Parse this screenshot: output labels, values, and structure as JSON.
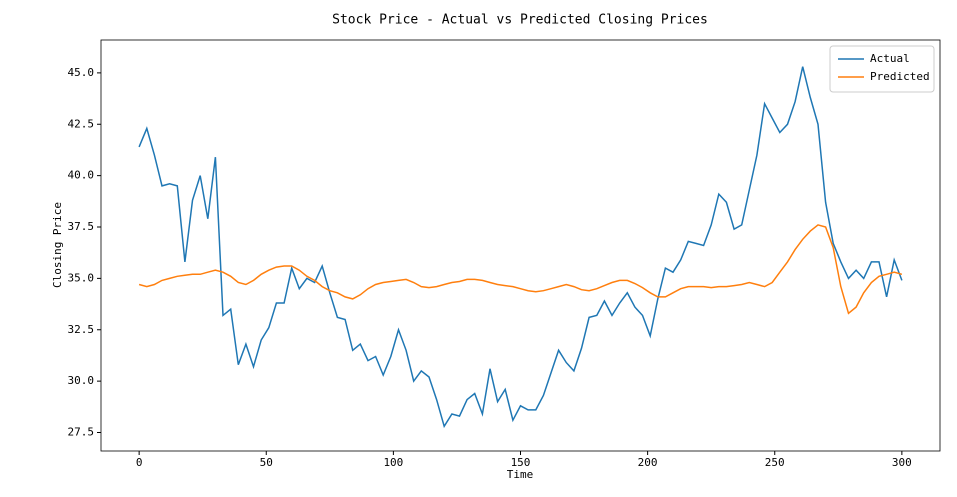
{
  "chart_data": {
    "type": "line",
    "title": "Stock Price - Actual vs Predicted Closing Prices",
    "x_label": "Time",
    "y_label": "Closing Price",
    "x": [
      0,
      3,
      6,
      9,
      12,
      15,
      18,
      21,
      24,
      27,
      30,
      33,
      36,
      39,
      42,
      45,
      48,
      51,
      54,
      57,
      60,
      63,
      66,
      69,
      72,
      75,
      78,
      81,
      84,
      87,
      90,
      93,
      96,
      99,
      102,
      105,
      108,
      111,
      114,
      117,
      120,
      123,
      126,
      129,
      132,
      135,
      138,
      141,
      144,
      147,
      150,
      153,
      156,
      159,
      162,
      165,
      168,
      171,
      174,
      177,
      180,
      183,
      186,
      189,
      192,
      195,
      198,
      201,
      204,
      207,
      210,
      213,
      216,
      219,
      222,
      225,
      228,
      231,
      234,
      237,
      240,
      243,
      246,
      249,
      252,
      255,
      258,
      261,
      264,
      267,
      270,
      273,
      276,
      279,
      282,
      285,
      288,
      291,
      294,
      297,
      300
    ],
    "series": [
      {
        "name": "Actual",
        "color": "#1f77b4",
        "values": [
          41.4,
          42.3,
          41.0,
          39.5,
          39.6,
          39.5,
          35.8,
          38.8,
          40.0,
          37.9,
          40.9,
          33.2,
          33.5,
          30.8,
          31.8,
          30.7,
          32.0,
          32.6,
          33.8,
          33.8,
          35.5,
          34.5,
          35.0,
          34.8,
          35.6,
          34.3,
          33.1,
          33.0,
          31.5,
          31.8,
          31.0,
          31.2,
          30.3,
          31.2,
          32.5,
          31.5,
          30.0,
          30.5,
          30.2,
          29.1,
          27.8,
          28.4,
          28.3,
          29.1,
          29.4,
          28.4,
          30.6,
          29.0,
          29.6,
          28.1,
          28.8,
          28.6,
          28.6,
          29.3,
          30.4,
          31.5,
          30.9,
          30.5,
          31.6,
          33.1,
          33.2,
          33.9,
          33.2,
          33.8,
          34.3,
          33.6,
          33.2,
          32.2,
          34.0,
          35.5,
          35.3,
          35.9,
          36.8,
          36.7,
          36.6,
          37.6,
          39.1,
          38.7,
          37.4,
          37.6,
          39.3,
          41.0,
          43.5,
          42.8,
          42.1,
          42.5,
          43.6,
          45.3,
          43.8,
          42.5,
          38.7,
          36.7,
          35.8,
          35.0,
          35.4,
          35.0,
          35.8,
          35.8,
          34.1,
          35.9,
          34.9
        ]
      },
      {
        "name": "Predicted",
        "color": "#ff7f0e",
        "values": [
          34.7,
          34.6,
          34.7,
          34.9,
          35.0,
          35.1,
          35.15,
          35.2,
          35.2,
          35.3,
          35.4,
          35.3,
          35.1,
          34.8,
          34.7,
          34.9,
          35.2,
          35.4,
          35.55,
          35.6,
          35.6,
          35.4,
          35.1,
          34.9,
          34.6,
          34.4,
          34.3,
          34.1,
          34.0,
          34.2,
          34.5,
          34.7,
          34.8,
          34.85,
          34.9,
          34.95,
          34.8,
          34.6,
          34.55,
          34.6,
          34.7,
          34.8,
          34.85,
          34.95,
          34.95,
          34.9,
          34.8,
          34.7,
          34.65,
          34.6,
          34.5,
          34.4,
          34.35,
          34.4,
          34.5,
          34.6,
          34.7,
          34.6,
          34.45,
          34.4,
          34.5,
          34.65,
          34.8,
          34.9,
          34.9,
          34.75,
          34.55,
          34.3,
          34.1,
          34.1,
          34.3,
          34.5,
          34.6,
          34.6,
          34.6,
          34.55,
          34.6,
          34.6,
          34.65,
          34.7,
          34.8,
          34.7,
          34.6,
          34.8,
          35.3,
          35.8,
          36.4,
          36.9,
          37.3,
          37.6,
          37.5,
          36.5,
          34.6,
          33.3,
          33.6,
          34.3,
          34.8,
          35.1,
          35.2,
          35.3,
          35.2
        ]
      }
    ],
    "xlim": [
      -15,
      315
    ],
    "ylim": [
      26.6,
      46.6
    ],
    "xticks": [
      0,
      50,
      100,
      150,
      200,
      250,
      300
    ],
    "yticks": [
      27.5,
      {
        "value": 30,
        "label": "30.0"
      },
      32.5,
      {
        "value": 35,
        "label": "35.0"
      },
      37.5,
      {
        "value": 40,
        "label": "40.0"
      },
      42.5,
      {
        "value": 45,
        "label": "45.0"
      }
    ],
    "legend": "upper right"
  }
}
